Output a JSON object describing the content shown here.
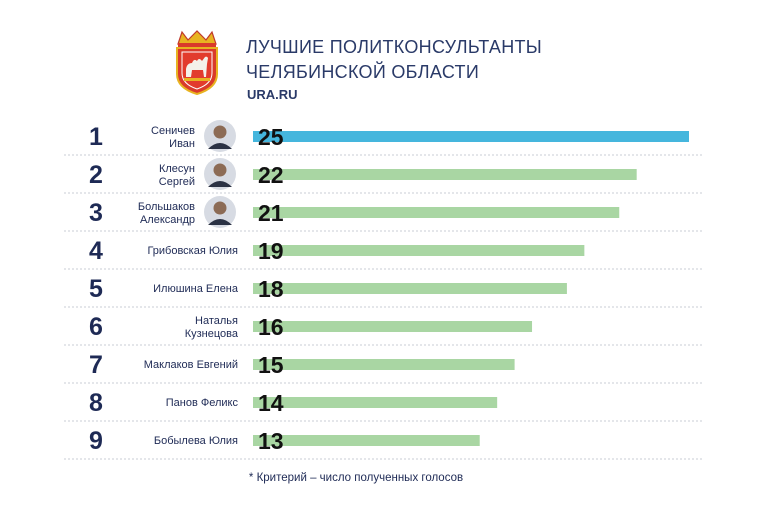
{
  "header": {
    "title_line1": "ЛУЧШИЕ ПОЛИТКОНСУЛЬТАНТЫ",
    "title_line2": "ЧЕЛЯБИНСКОЙ ОБЛАСТИ",
    "source": "URA.RU",
    "emblem_icon": "chelyabinsk-coat-of-arms-icon"
  },
  "colors": {
    "top_bar": "#45b6dd",
    "bar": "#a9d6a3",
    "text": "#1e2a55",
    "divider": "#c8ccd6"
  },
  "chart_data": {
    "type": "bar",
    "orientation": "horizontal",
    "ranks": [
      "1",
      "2",
      "3",
      "4",
      "5",
      "6",
      "7",
      "8",
      "9"
    ],
    "categories": [
      [
        "Сеничев",
        "Иван"
      ],
      [
        "Клесун",
        "Сергей"
      ],
      [
        "Большаков",
        "Александр"
      ],
      [
        "Грибовская Юлия"
      ],
      [
        "Илюшина Елена"
      ],
      [
        "Наталья",
        "Кузнецова"
      ],
      [
        "Маклаков Евгений"
      ],
      [
        "Панов Феликс"
      ],
      [
        "Бобылева Юлия"
      ]
    ],
    "photos": [
      true,
      true,
      true,
      false,
      false,
      false,
      false,
      false,
      false
    ],
    "values": [
      25,
      22,
      21,
      19,
      18,
      16,
      15,
      14,
      13
    ],
    "xlim": [
      0,
      25
    ],
    "highlight_index": 0,
    "grid": false
  },
  "footnote": "* Критерий – число полученных голосов"
}
